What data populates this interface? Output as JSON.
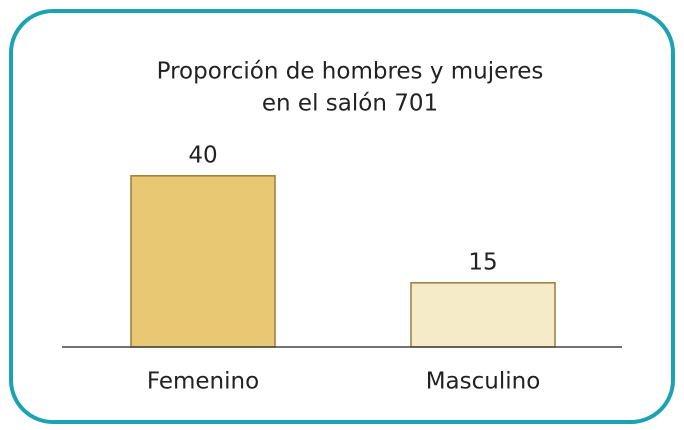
{
  "chart_data": {
    "type": "bar",
    "title": [
      "Proporción de hombres y mujeres",
      "en el salón 701"
    ],
    "categories": [
      "Femenino",
      "Masculino"
    ],
    "values": [
      40,
      15
    ],
    "colors": [
      "#e8c872",
      "#f6ebc8"
    ]
  }
}
